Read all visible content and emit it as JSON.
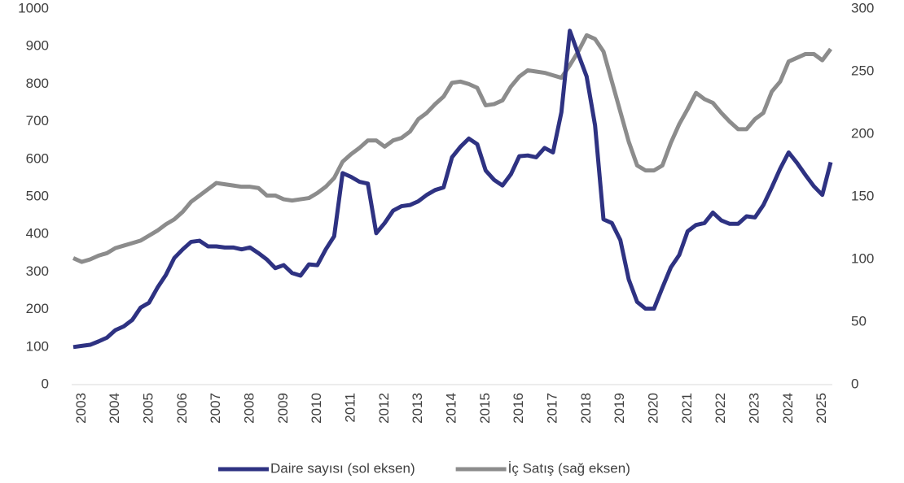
{
  "chart_data": {
    "type": "line",
    "categories": [
      null,
      "2003",
      null,
      null,
      null,
      "2004",
      null,
      null,
      null,
      "2005",
      null,
      null,
      null,
      "2006",
      null,
      null,
      null,
      "2007",
      null,
      null,
      null,
      "2008",
      null,
      null,
      null,
      "2009",
      null,
      null,
      null,
      "2010",
      null,
      null,
      null,
      "2011",
      null,
      null,
      null,
      "2012",
      null,
      null,
      null,
      "2013",
      null,
      null,
      null,
      "2014",
      null,
      null,
      null,
      "2015",
      null,
      null,
      null,
      "2016",
      null,
      null,
      null,
      "2017",
      null,
      null,
      null,
      "2018",
      null,
      null,
      null,
      "2019",
      null,
      null,
      null,
      "2020",
      null,
      null,
      null,
      "2021",
      null,
      null,
      null,
      "2022",
      null,
      null,
      null,
      "2023",
      null,
      null,
      null,
      "2024",
      null,
      null,
      null,
      "2025",
      null
    ],
    "series": [
      {
        "name": "Daire sayısı (sol eksen)",
        "color": "#2e3282",
        "values": [
          100,
          103,
          106,
          115,
          125,
          145,
          155,
          172,
          205,
          218,
          258,
          292,
          337,
          360,
          380,
          383,
          368,
          368,
          365,
          365,
          360,
          365,
          350,
          333,
          310,
          318,
          297,
          290,
          320,
          318,
          360,
          395,
          563,
          553,
          540,
          535,
          403,
          430,
          463,
          475,
          478,
          488,
          505,
          518,
          525,
          605,
          633,
          655,
          640,
          570,
          545,
          530,
          560,
          608,
          610,
          605,
          630,
          618,
          725,
          942,
          880,
          820,
          690,
          440,
          430,
          385,
          280,
          220,
          202,
          202,
          258,
          312,
          345,
          408,
          425,
          430,
          458,
          437,
          428,
          428,
          448,
          445,
          478,
          525,
          575,
          618,
          590,
          558,
          528,
          505,
          592
        ]
      },
      {
        "name": "İç Satış (sağ eksen)",
        "color": "#8c8c8c",
        "axis": "y2",
        "values": [
          101,
          98,
          100,
          103,
          105,
          109,
          111,
          113,
          115,
          119,
          123,
          128,
          132,
          138,
          146,
          151,
          156,
          161,
          160,
          159,
          158,
          158,
          157,
          151,
          151,
          148,
          147,
          148,
          149,
          153,
          158,
          165,
          178,
          184,
          189,
          195,
          195,
          190,
          195,
          197,
          202,
          212,
          217,
          224,
          230,
          241,
          242,
          240,
          237,
          223,
          224,
          227,
          238,
          246,
          251,
          250,
          249,
          247,
          245,
          255,
          266,
          279,
          276,
          266,
          242,
          218,
          194,
          175,
          171,
          171,
          175,
          193,
          208,
          220,
          233,
          228,
          225,
          217,
          210,
          204,
          204,
          212,
          217,
          234,
          242,
          258,
          261,
          264,
          264,
          259,
          268
        ]
      }
    ],
    "ylim": [
      0,
      1000
    ],
    "yticks": [
      0,
      100,
      200,
      300,
      400,
      500,
      600,
      700,
      800,
      900,
      1000
    ],
    "y2lim": [
      0,
      300
    ],
    "y2ticks": [
      0,
      50,
      100,
      150,
      200,
      250,
      300
    ],
    "grid": false,
    "legend": "bottom"
  }
}
